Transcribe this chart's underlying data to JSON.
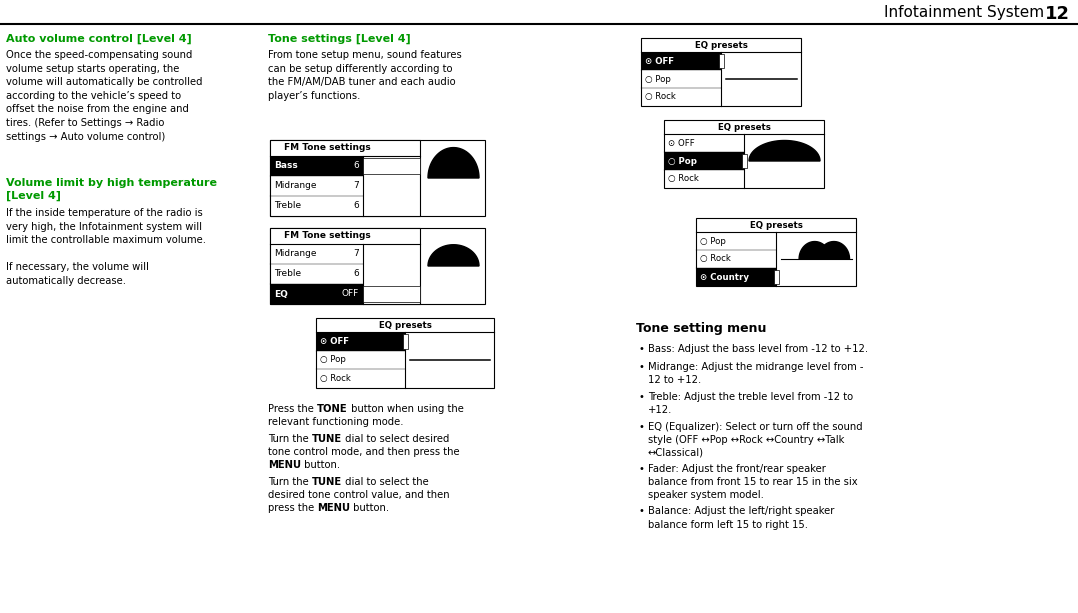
{
  "bg": "#ffffff",
  "black": "#000000",
  "green": "#009900",
  "title_text": "Infotainment System",
  "title_num": "12",
  "col1_h1": "Auto volume control [Level 4]",
  "col1_p1": "Once the speed-compensating sound\nvolume setup starts operating, the\nvolume will automatically be controlled\naccording to the vehicle’s speed to\noffset the noise from the engine and\ntires. (Refer to Settings → Radio\nsettings → Auto volume control)",
  "col1_h2": "Volume limit by high temperature\n[Level 4]",
  "col1_p2": "If the inside temperature of the radio is\nvery high, the Infotainment system will\nlimit the controllable maximum volume.\n\nIf necessary, the volume will\nautomatically decrease.",
  "col2_h1": "Tone settings [Level 4]",
  "col2_p1": "From tone setup menu, sound features\ncan be setup differently according to\nthe FM/AM/DAB tuner and each audio\nplayer’s functions.",
  "fm1_title": "FM Tone settings",
  "fm1_rows": [
    [
      "Bass",
      "6"
    ],
    [
      "Midrange",
      "7"
    ],
    [
      "Treble",
      "6"
    ]
  ],
  "fm1_sel": 0,
  "fm2_title": "FM Tone settings",
  "fm2_rows": [
    [
      "Midrange",
      "7"
    ],
    [
      "Treble",
      "6"
    ],
    [
      "EQ",
      "OFF"
    ]
  ],
  "fm2_sel": 2,
  "eq1_title": "EQ presets",
  "eq1_rows": [
    "⊙ OFF",
    "○ Pop",
    "○ Rock"
  ],
  "eq1_sel": 0,
  "eq2_title": "EQ presets",
  "eq2_rows": [
    "⊙ OFF",
    "○ Pop",
    "○ Rock"
  ],
  "eq2_sel": 0,
  "eq3_title": "EQ presets",
  "eq3_rows": [
    "⊙ OFF",
    "○ Pop",
    "○ Rock"
  ],
  "eq3_sel": 1,
  "eq4_title": "EQ presets",
  "eq4_rows": [
    "○ Pop",
    "○ Rock",
    "⊙ Country"
  ],
  "eq4_sel": 2,
  "col3_h1": "Tone setting menu",
  "col3_bullets": [
    "Bass: Adjust the bass level from -12 to +12.",
    "Midrange: Adjust the midrange level from -\n12 to +12.",
    "Treble: Adjust the treble level from -12 to\n+12.",
    "EQ (Equalizer): Select or turn off the sound\nstyle (OFF ↔Pop ↔Rock ↔Country ↔Talk\n↔Classical)",
    "Fader: Adjust the front/rear speaker\nbalance from front 15 to rear 15 in the six\nspeaker system model.",
    "Balance: Adjust the left/right speaker\nbalance form left 15 to right 15."
  ]
}
